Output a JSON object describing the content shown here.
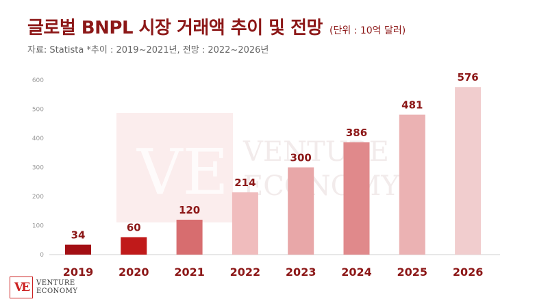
{
  "header": {
    "title": "글로벌 BNPL 시장 거래액 추이 및 전망",
    "unit": "(단위 : 10억 달러)",
    "source": "자료: Statista *추이 : 2019~2021년, 전망 : 2022~2026년"
  },
  "logo": {
    "mark": "VE",
    "line1": "VENTURE",
    "line2": "ECONOMY"
  },
  "watermark": {
    "mark": "VE",
    "line1": "VENTURE",
    "line2": "ECONOMY"
  },
  "chart_data": {
    "type": "bar",
    "categories": [
      "2019",
      "2020",
      "2021",
      "2022",
      "2023",
      "2024",
      "2025",
      "2026"
    ],
    "values": [
      34,
      60,
      120,
      214,
      300,
      386,
      481,
      576
    ],
    "colors": [
      "#a30f14",
      "#c01a1a",
      "#d76d6f",
      "#f0bcbd",
      "#e8a7a8",
      "#e0898b",
      "#ebb2b3",
      "#f1cdce"
    ],
    "label_color": "#8c1717",
    "ylim": [
      0,
      600
    ],
    "yticks": [
      0,
      100,
      200,
      300,
      400,
      500,
      600
    ],
    "grid": false
  }
}
